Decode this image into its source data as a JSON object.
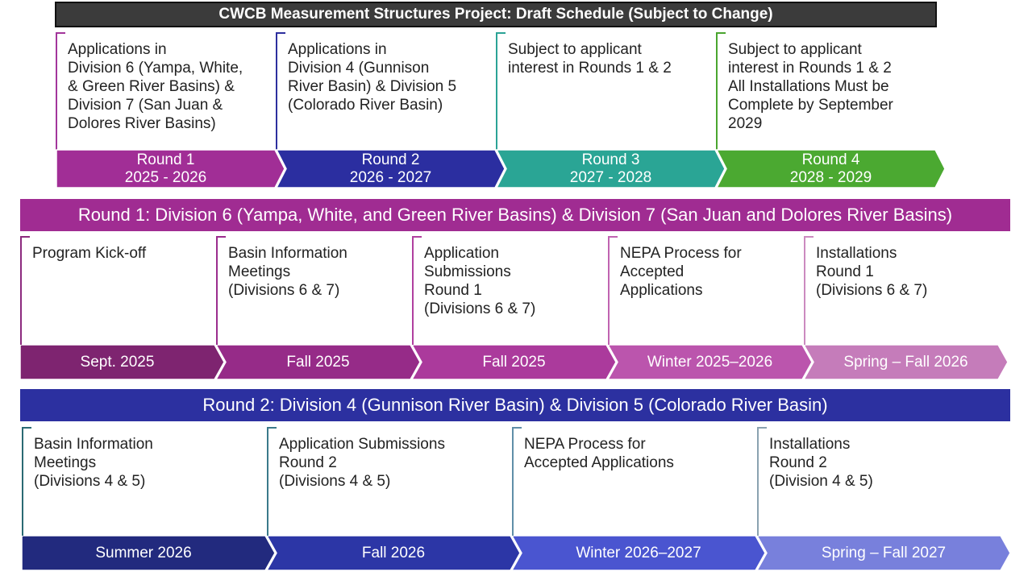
{
  "title": "CWCB Measurement Structures Project: Draft Schedule (Subject to Change)",
  "overview": {
    "cards": [
      {
        "text": "Applications in\nDivision 6 (Yampa, White,\n& Green River Basins) &\nDivision 7 (San Juan &\nDolores River Basins)",
        "color": "#a3359b"
      },
      {
        "text": "Applications in\nDivision 4 (Gunnison\nRiver Basin) & Division 5\n(Colorado River Basin)",
        "color": "#2d2f9e"
      },
      {
        "text": "Subject to applicant\ninterest in Rounds 1 & 2",
        "color": "#2ba396"
      },
      {
        "text": "Subject to applicant\ninterest in Rounds 1 & 2\nAll Installations Must be\nComplete by September\n2029",
        "color": "#4aa52f"
      }
    ],
    "chevrons": [
      {
        "label": "Round 1\n2025 - 2026",
        "color": "#a12e96"
      },
      {
        "label": "Round 2\n2026 - 2027",
        "color": "#2b2ea0"
      },
      {
        "label": "Round 3\n2027 - 2028",
        "color": "#2aa595"
      },
      {
        "label": "Round 4\n2028 - 2029",
        "color": "#4ba931"
      }
    ]
  },
  "round1": {
    "header": "Round 1: Division 6 (Yampa, White, and Green River Basins) & Division 7 (San Juan and Dolores River Basins)",
    "header_color": "#a02c92",
    "cards": [
      {
        "text": "Program Kick-off",
        "color": "#8c2a7e"
      },
      {
        "text": "Basin Information\nMeetings\n(Divisions 6 & 7)",
        "color": "#9b2d8e"
      },
      {
        "text": "Application\nSubmissions\nRound 1\n(Divisions 6 & 7)",
        "color": "#b0409f"
      },
      {
        "text": "NEPA Process for\nAccepted\nApplications",
        "color": "#c063b1"
      },
      {
        "text": "Installations\nRound 1\n(Divisions 6 & 7)",
        "color": "#cc8ac0"
      }
    ],
    "chevrons": [
      {
        "label": "Sept. 2025",
        "color": "#7e2470"
      },
      {
        "label": "Fall 2025",
        "color": "#962b88"
      },
      {
        "label": "Fall 2025",
        "color": "#ab3a9c"
      },
      {
        "label": "Winter 2025–2026",
        "color": "#bb55ad"
      },
      {
        "label": "Spring – Fall 2026",
        "color": "#c57cba"
      }
    ]
  },
  "round2": {
    "header": "Round 2: Division 4 (Gunnison River Basin) & Division 5 (Colorado River Basin)",
    "header_color": "#2c30a0",
    "cards": [
      {
        "text": "Basin Information\nMeetings\n(Divisions 4 & 5)",
        "color": "#2a6a73"
      },
      {
        "text": "Application Submissions\nRound 2\n(Divisions 4 & 5)",
        "color": "#3b7a8a"
      },
      {
        "text": "NEPA Process for\nAccepted Applications",
        "color": "#5f8ea8"
      },
      {
        "text": "Installations\nRound 2\n(Division 4 & 5)",
        "color": "#8aa2b0"
      }
    ],
    "chevrons": [
      {
        "label": "Summer 2026",
        "color": "#222a7e"
      },
      {
        "label": "Fall 2026",
        "color": "#2c36a6"
      },
      {
        "label": "Winter 2026–2027",
        "color": "#4a55d0"
      },
      {
        "label": "Spring – Fall 2027",
        "color": "#7880dc"
      }
    ]
  }
}
